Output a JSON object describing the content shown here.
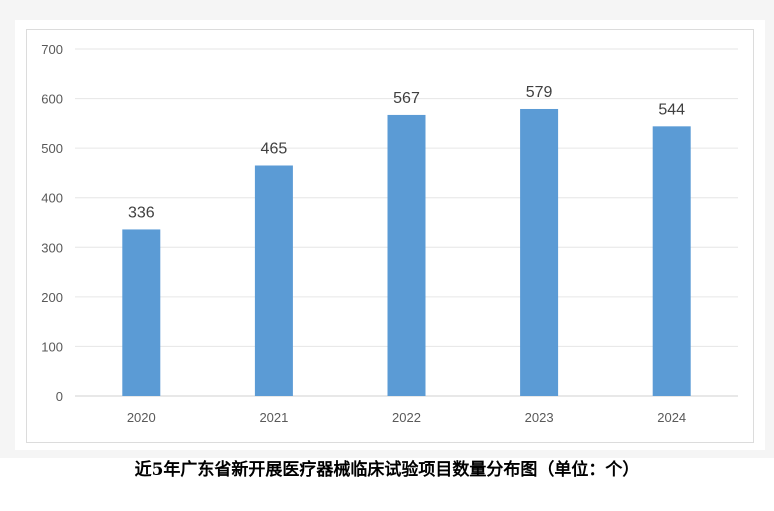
{
  "chart_data": {
    "type": "bar",
    "categories": [
      "2020",
      "2021",
      "2022",
      "2023",
      "2024"
    ],
    "values": [
      336,
      465,
      567,
      579,
      544
    ],
    "title": "近5年广东省新开展医疗器械临床试验项目数量分布图（单位：个）",
    "xlabel": "",
    "ylabel": "",
    "ylim": [
      0,
      700
    ],
    "yticks": [
      0,
      100,
      200,
      300,
      400,
      500,
      600,
      700
    ],
    "grid": true,
    "data_labels": true,
    "bar_color": "#5b9bd5"
  }
}
